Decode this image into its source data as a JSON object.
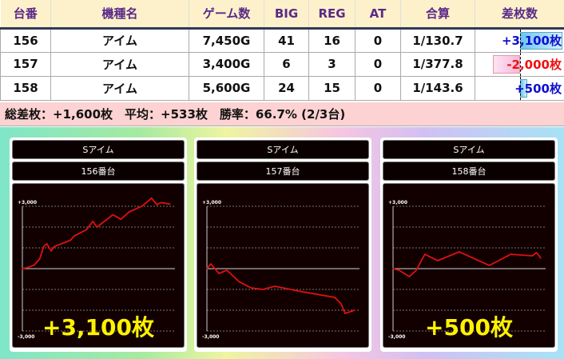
{
  "table": {
    "headers": [
      "台番",
      "機種名",
      "ゲーム数",
      "BIG",
      "REG",
      "AT",
      "合算",
      "差枚数"
    ],
    "rows": [
      {
        "no": "156",
        "name": "アイム",
        "games": "7,450G",
        "big": "41",
        "reg": "16",
        "at": "0",
        "total": "1/130.7",
        "diff": "+3,100枚",
        "diff_value": 3100
      },
      {
        "no": "157",
        "name": "アイム",
        "games": "3,400G",
        "big": "6",
        "reg": "3",
        "at": "0",
        "total": "1/377.8",
        "diff": "-2,000枚",
        "diff_value": -2000
      },
      {
        "no": "158",
        "name": "アイム",
        "games": "5,600G",
        "big": "24",
        "reg": "15",
        "at": "0",
        "total": "1/143.6",
        "diff": "+500枚",
        "diff_value": 500
      }
    ]
  },
  "summary": "総差枚：+1,600枚　平均：+533枚　勝率：66.7% (2/3台)",
  "colors": {
    "positive": "#1010d0",
    "negative": "#ee1111",
    "line": "#e01010",
    "big_text": "#fff200"
  },
  "chart_data": [
    {
      "type": "line",
      "machine": "Sアイム",
      "unit": "156番台",
      "result": "+3,100枚",
      "y_top_label": "+3,000",
      "y_bottom_label": "-3,000",
      "ylim": [
        -3000,
        3000
      ],
      "xlim": [
        0,
        7450
      ],
      "x": [
        0,
        268,
        604,
        873,
        1074,
        1235,
        1450,
        1611,
        2416,
        2618,
        3222,
        3557,
        3759,
        4565,
        4968,
        5371,
        6042,
        6512,
        6781,
        6983,
        7450
      ],
      "y": [
        0,
        51,
        178,
        470,
        1068,
        1195,
        852,
        1068,
        1360,
        1576,
        1869,
        2275,
        1996,
        2593,
        2377,
        2720,
        3013,
        3394,
        3076,
        3178,
        3100
      ]
    },
    {
      "type": "line",
      "machine": "Sアイム",
      "unit": "157番台",
      "result": "",
      "y_top_label": "+3,000",
      "y_bottom_label": "-3,000",
      "ylim": [
        -3000,
        3000
      ],
      "xlim": [
        0,
        3400
      ],
      "x": [
        0,
        92,
        276,
        460,
        735,
        1011,
        1286,
        1562,
        2205,
        2940,
        3087,
        3178,
        3400
      ],
      "y": [
        0,
        231,
        -231,
        -77,
        -615,
        -923,
        -1000,
        -846,
        -1115,
        -1385,
        -1692,
        -2154,
        -2000
      ]
    },
    {
      "type": "line",
      "machine": "Sアイム",
      "unit": "158番台",
      "result": "+500枚",
      "y_top_label": "+3,000",
      "y_bottom_label": "-3,000",
      "ylim": [
        -3000,
        3000
      ],
      "xlim": [
        0,
        5600
      ],
      "x": [
        0,
        228,
        619,
        879,
        1205,
        1693,
        2507,
        3647,
        4460,
        5274,
        5437,
        5600
      ],
      "y": [
        0,
        -77,
        -385,
        -77,
        692,
        385,
        808,
        154,
        692,
        615,
        769,
        500
      ]
    }
  ]
}
